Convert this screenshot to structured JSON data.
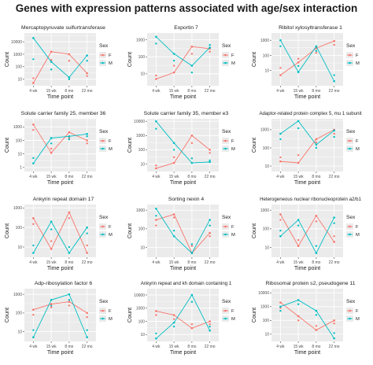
{
  "title": "Genes with expression patterns associated with age/sex interaction",
  "colors": {
    "F": "#f8766d",
    "M": "#00bfc4",
    "panel_bg": "#ebebeb",
    "grid": "#ffffff"
  },
  "chart_data": [
    {
      "type": "line",
      "title": "Mercaptopyruvate sulfurtransferase",
      "xlabel": "Time point",
      "ylabel": "Count",
      "categories": [
        "4 wk",
        "15 wk",
        "8 mo",
        "22 mo"
      ],
      "yscale": "log",
      "ylim": [
        3,
        50000
      ],
      "yticks": [
        {
          "v": 10,
          "label": "10"
        },
        {
          "v": 100,
          "label": "100"
        },
        {
          "v": 1000,
          "label": "1000"
        },
        {
          "v": 10000,
          "label": "10000"
        }
      ],
      "legend": {
        "title": "Sex",
        "entries": [
          "F",
          "M"
        ]
      },
      "series": [
        {
          "name": "F",
          "values": [
            5,
            1600,
            1000,
            30
          ]
        },
        {
          "name": "M",
          "values": [
            20000,
            250,
            14,
            800
          ]
        }
      ],
      "extra_points": [
        {
          "series": "F",
          "values": [
            12,
            350,
            300,
            18
          ]
        },
        {
          "series": "M",
          "values": [
            400,
            60,
            10,
            300
          ]
        }
      ]
    },
    {
      "type": "line",
      "title": "Exportin 7",
      "xlabel": "Time point",
      "ylabel": "Count",
      "categories": [
        "4 wk",
        "15 wk",
        "8 mo",
        "22 mo"
      ],
      "yscale": "log",
      "ylim": [
        2,
        2500
      ],
      "yticks": [
        {
          "v": 10,
          "label": "10"
        },
        {
          "v": 100,
          "label": "100"
        },
        {
          "v": 1000,
          "label": "1000"
        }
      ],
      "legend": {
        "title": "Sex",
        "entries": [
          "F",
          "M"
        ]
      },
      "series": [
        {
          "name": "F",
          "values": [
            5,
            12,
            400,
            300
          ]
        },
        {
          "name": "M",
          "values": [
            1500,
            150,
            30,
            350
          ]
        }
      ],
      "extra_points": [
        {
          "series": "F",
          "values": [
            8,
            30,
            150,
            200
          ]
        },
        {
          "series": "M",
          "values": [
            600,
            60,
            12,
            500
          ]
        }
      ]
    },
    {
      "type": "line",
      "title": "Ribitol xylosyltransferase 1",
      "xlabel": "Time point",
      "ylabel": "Count",
      "categories": [
        "4 wk",
        "15 wk",
        "8 mo",
        "22 mo"
      ],
      "yscale": "log",
      "ylim": [
        1,
        3000
      ],
      "yticks": [
        {
          "v": 10,
          "label": "10"
        },
        {
          "v": 100,
          "label": "100"
        },
        {
          "v": 1000,
          "label": "1000"
        }
      ],
      "legend": {
        "title": "Sex",
        "entries": [
          "F",
          "M"
        ]
      },
      "series": [
        {
          "name": "F",
          "values": [
            5,
            35,
            300,
            900
          ]
        },
        {
          "name": "M",
          "values": [
            1000,
            8,
            400,
            2
          ]
        }
      ],
      "extra_points": [
        {
          "series": "F",
          "values": [
            15,
            60,
            150,
            500
          ]
        },
        {
          "series": "M",
          "values": [
            400,
            20,
            200,
            5
          ]
        }
      ]
    },
    {
      "type": "line",
      "title": "Solute carrier family 25, member 36",
      "xlabel": "Time point",
      "ylabel": "Count",
      "categories": [
        "4 wk",
        "15 wk",
        "8 mo",
        "22 mo"
      ],
      "yscale": "log",
      "ylim": [
        0.5,
        4000
      ],
      "yticks": [
        {
          "v": 1,
          "label": "1"
        },
        {
          "v": 10,
          "label": "10"
        },
        {
          "v": 100,
          "label": "100"
        },
        {
          "v": 1000,
          "label": "1000"
        }
      ],
      "legend": {
        "title": "Sex",
        "entries": [
          "F",
          "M"
        ]
      },
      "series": [
        {
          "name": "F",
          "values": [
            1500,
            12,
            400,
            100
          ]
        },
        {
          "name": "M",
          "values": [
            2,
            150,
            200,
            300
          ]
        }
      ],
      "extra_points": [
        {
          "series": "F",
          "values": [
            600,
            25,
            150,
            60
          ]
        },
        {
          "series": "M",
          "values": [
            5,
            60,
            120,
            200
          ]
        }
      ]
    },
    {
      "type": "line",
      "title": "Solute carrier family 35, member e3",
      "xlabel": "Time point",
      "ylabel": "Count",
      "categories": [
        "4 wk",
        "15 wk",
        "8 mo",
        "22 mo"
      ],
      "yscale": "log",
      "ylim": [
        3,
        15000
      ],
      "yticks": [
        {
          "v": 10,
          "label": "10"
        },
        {
          "v": 100,
          "label": "100"
        },
        {
          "v": 1000,
          "label": "1000"
        },
        {
          "v": 10000,
          "label": "10000"
        }
      ],
      "legend": {
        "title": "Sex",
        "entries": [
          "F",
          "M"
        ]
      },
      "series": [
        {
          "name": "F",
          "values": [
            5,
            12,
            1000,
            100
          ]
        },
        {
          "name": "M",
          "values": [
            10000,
            300,
            12,
            14
          ]
        }
      ],
      "extra_points": [
        {
          "series": "F",
          "values": [
            8,
            30,
            300,
            60
          ]
        },
        {
          "series": "M",
          "values": [
            3000,
            100,
            25,
            18
          ]
        }
      ]
    },
    {
      "type": "line",
      "title": "Adaptor-related protein complex 5, mu 1 subunit",
      "xlabel": "Time point",
      "ylabel": "Count",
      "categories": [
        "4 wk",
        "15 wk",
        "8 mo",
        "22 mo"
      ],
      "yscale": "log",
      "ylim": [
        5,
        4000
      ],
      "yticks": [
        {
          "v": 10,
          "label": "10"
        },
        {
          "v": 100,
          "label": "100"
        },
        {
          "v": 1000,
          "label": "1000"
        }
      ],
      "legend": {
        "title": "Sex",
        "entries": [
          "F",
          "M"
        ]
      },
      "series": [
        {
          "name": "F",
          "values": [
            18,
            15,
            300,
            1000
          ]
        },
        {
          "name": "M",
          "values": [
            600,
            3000,
            150,
            900
          ]
        }
      ],
      "extra_points": [
        {
          "series": "F",
          "values": [
            30,
            40,
            200,
            600
          ]
        },
        {
          "series": "M",
          "values": [
            300,
            1200,
            100,
            400
          ]
        }
      ]
    },
    {
      "type": "line",
      "title": "Ankyrin repeat domain 17",
      "xlabel": "Time point",
      "ylabel": "Count",
      "categories": [
        "4 wk",
        "15 wk",
        "8 mo",
        "22 mo"
      ],
      "yscale": "log",
      "ylim": [
        3,
        1500
      ],
      "yticks": [
        {
          "v": 10,
          "label": "10"
        },
        {
          "v": 100,
          "label": "100"
        },
        {
          "v": 1000,
          "label": "1000"
        }
      ],
      "legend": {
        "title": "Sex",
        "entries": [
          "F",
          "M"
        ]
      },
      "series": [
        {
          "name": "F",
          "values": [
            300,
            8,
            600,
            5
          ]
        },
        {
          "name": "M",
          "values": [
            5,
            200,
            5,
            100
          ]
        }
      ],
      "extra_points": [
        {
          "series": "F",
          "values": [
            150,
            20,
            300,
            12
          ]
        },
        {
          "series": "M",
          "values": [
            12,
            80,
            10,
            50
          ]
        }
      ]
    },
    {
      "type": "line",
      "title": "Sorting nexin 4",
      "xlabel": "Time point",
      "ylabel": "Count",
      "categories": [
        "4 wk",
        "15 wk",
        "8 mo",
        "22 mo"
      ],
      "yscale": "log",
      "ylim": [
        3,
        2000
      ],
      "yticks": [
        {
          "v": 10,
          "label": "10"
        },
        {
          "v": 100,
          "label": "100"
        },
        {
          "v": 1000,
          "label": "1000"
        }
      ],
      "legend": {
        "title": "Sex",
        "entries": [
          "F",
          "M"
        ]
      },
      "series": [
        {
          "name": "F",
          "values": [
            300,
            600,
            5,
            60
          ]
        },
        {
          "name": "M",
          "values": [
            1200,
            40,
            5,
            300
          ]
        }
      ],
      "extra_points": [
        {
          "series": "F",
          "values": [
            150,
            400,
            12,
            40
          ]
        },
        {
          "series": "M",
          "values": [
            500,
            80,
            15,
            150
          ]
        }
      ]
    },
    {
      "type": "line",
      "title": "Heterogeneous nuclear ribonucleoprotein a2/b1",
      "xlabel": "Time point",
      "ylabel": "Count",
      "categories": [
        "4 wk",
        "15 wk",
        "8 mo",
        "22 mo"
      ],
      "yscale": "log",
      "ylim": [
        3,
        2000
      ],
      "yticks": [
        {
          "v": 10,
          "label": "10"
        },
        {
          "v": 100,
          "label": "100"
        },
        {
          "v": 1000,
          "label": "1000"
        }
      ],
      "legend": {
        "title": "Sex",
        "entries": [
          "F",
          "M"
        ]
      },
      "series": [
        {
          "name": "F",
          "values": [
            600,
            12,
            500,
            20
          ]
        },
        {
          "name": "M",
          "values": [
            40,
            300,
            5,
            400
          ]
        }
      ],
      "extra_points": [
        {
          "series": "F",
          "values": [
            300,
            25,
            250,
            40
          ]
        },
        {
          "series": "M",
          "values": [
            80,
            150,
            12,
            200
          ]
        }
      ]
    },
    {
      "type": "line",
      "title": "Adp-ribosylation factor 6",
      "xlabel": "Time point",
      "ylabel": "Count",
      "categories": [
        "4 wk",
        "15 wk",
        "8 mo",
        "22 mo"
      ],
      "yscale": "log",
      "ylim": [
        3,
        2000
      ],
      "yticks": [
        {
          "v": 10,
          "label": "10"
        },
        {
          "v": 100,
          "label": "100"
        },
        {
          "v": 1000,
          "label": "1000"
        }
      ],
      "legend": {
        "title": "Sex",
        "entries": [
          "F",
          "M"
        ]
      },
      "series": [
        {
          "name": "F",
          "values": [
            150,
            300,
            400,
            100
          ]
        },
        {
          "name": "M",
          "values": [
            5,
            500,
            1000,
            5
          ]
        }
      ],
      "extra_points": [
        {
          "series": "F",
          "values": [
            80,
            200,
            250,
            60
          ]
        },
        {
          "series": "M",
          "values": [
            12,
            250,
            500,
            12
          ]
        }
      ]
    },
    {
      "type": "line",
      "title": "Ankyrin repeat and kh domain containing 1",
      "xlabel": "Time point",
      "ylabel": "Count",
      "categories": [
        "4 wk",
        "15 wk",
        "8 mo",
        "22 mo"
      ],
      "yscale": "log",
      "ylim": [
        3,
        30000
      ],
      "yticks": [
        {
          "v": 10,
          "label": "10"
        },
        {
          "v": 100,
          "label": "100"
        },
        {
          "v": 1000,
          "label": "1000"
        },
        {
          "v": 10000,
          "label": "10000"
        }
      ],
      "legend": {
        "title": "Sex",
        "entries": [
          "F",
          "M"
        ]
      },
      "series": [
        {
          "name": "F",
          "values": [
            600,
            300,
            30,
            100
          ]
        },
        {
          "name": "M",
          "values": [
            5,
            80,
            10000,
            20
          ]
        }
      ],
      "extra_points": [
        {
          "series": "F",
          "values": [
            300,
            150,
            60,
            60
          ]
        },
        {
          "series": "M",
          "values": [
            12,
            40,
            3000,
            40
          ]
        }
      ]
    },
    {
      "type": "line",
      "title": "Ribosomal protein s2, pseudogene 11",
      "xlabel": "Time point",
      "ylabel": "Count",
      "categories": [
        "4 wk",
        "15 wk",
        "8 mo",
        "22 mo"
      ],
      "yscale": "log",
      "ylim": [
        3,
        20000
      ],
      "yticks": [
        {
          "v": 10,
          "label": "10"
        },
        {
          "v": 100,
          "label": "100"
        },
        {
          "v": 1000,
          "label": "1000"
        },
        {
          "v": 10000,
          "label": "10000"
        }
      ],
      "legend": {
        "title": "Sex",
        "entries": [
          "F",
          "M"
        ]
      },
      "series": [
        {
          "name": "F",
          "values": [
            2000,
            200,
            20,
            100
          ]
        },
        {
          "name": "M",
          "values": [
            1000,
            3000,
            500,
            5
          ]
        }
      ],
      "extra_points": [
        {
          "series": "F",
          "values": [
            800,
            100,
            40,
            60
          ]
        },
        {
          "series": "M",
          "values": [
            500,
            1500,
            250,
            12
          ]
        }
      ]
    }
  ]
}
